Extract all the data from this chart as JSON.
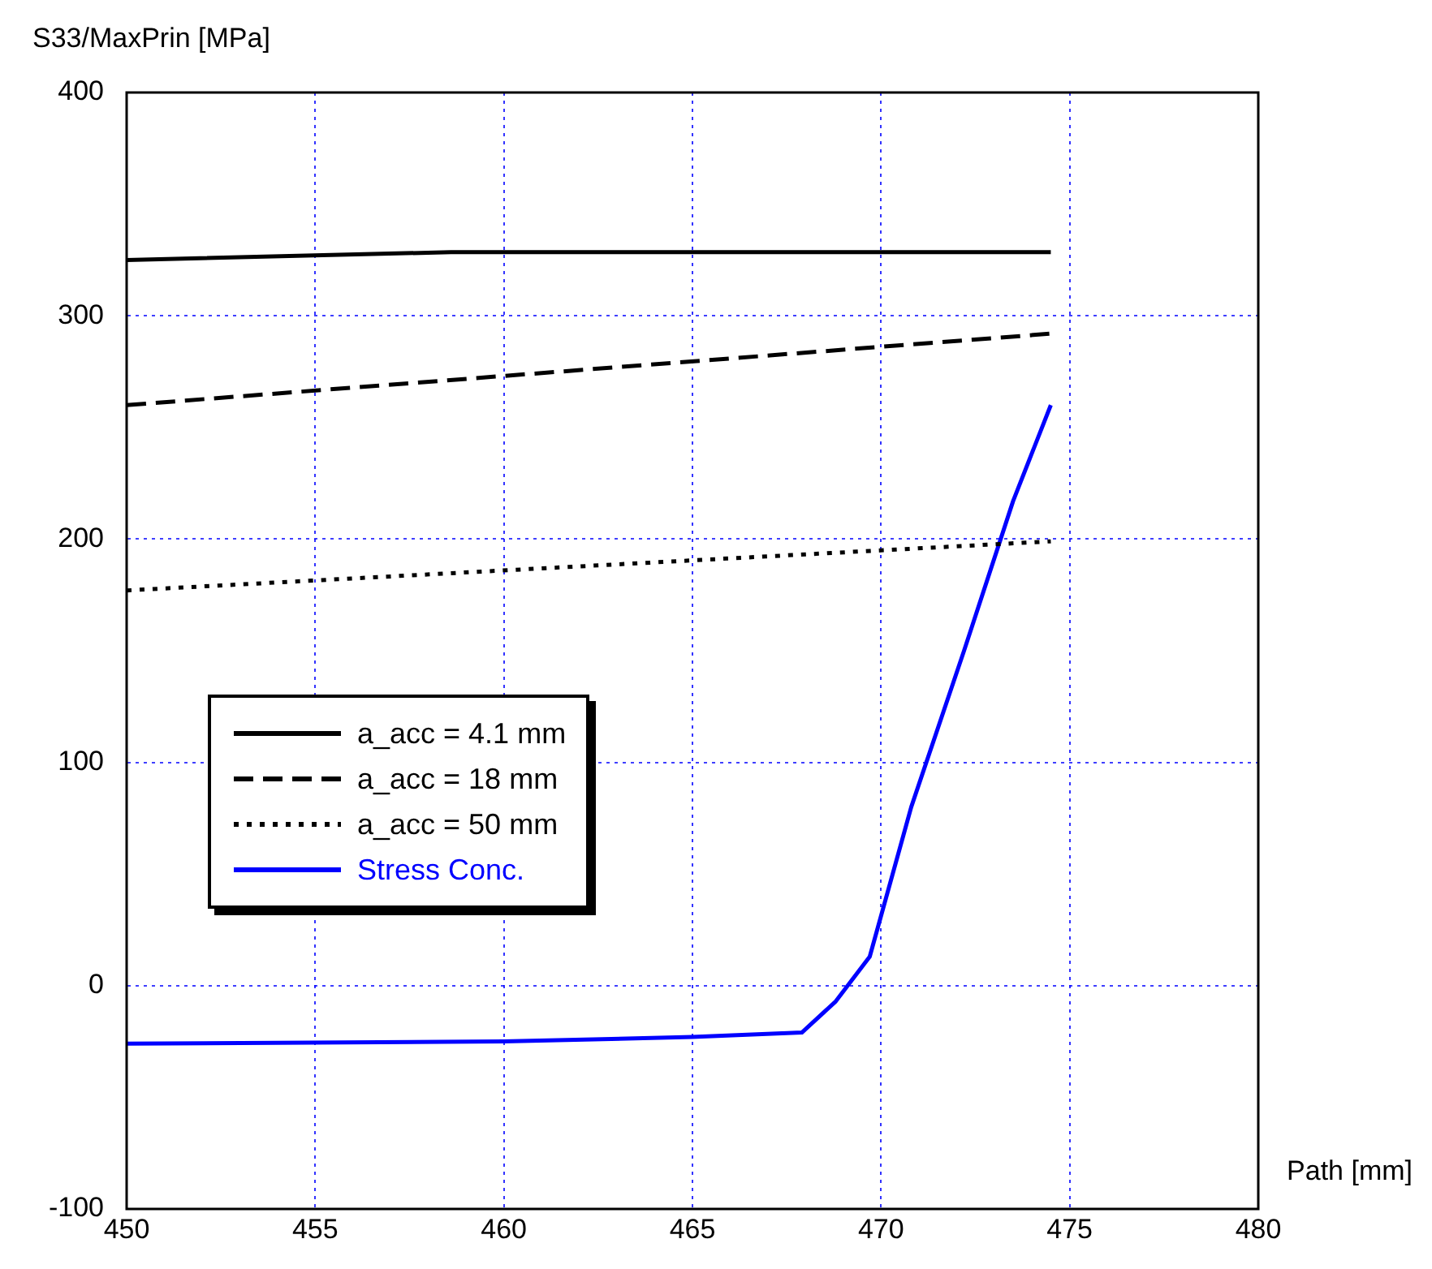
{
  "chart_data": {
    "type": "line",
    "xlabel": "Path [mm]",
    "ylabel": "S33/MaxPrin [MPa]",
    "xlim": [
      450,
      480
    ],
    "xticks": [
      450,
      455,
      460,
      465,
      470,
      475,
      480
    ],
    "ylim": [
      -100,
      400
    ],
    "yticks": [
      -100,
      0,
      100,
      200,
      300,
      400
    ],
    "grid": true,
    "legend": "left",
    "marker": "none",
    "series": [
      {
        "name": "a_acc = 4.1 mm",
        "color": "#000000",
        "line_style": "solid",
        "x": [
          450,
          458.6,
          474.5
        ],
        "values": [
          325,
          328.5,
          328.5
        ]
      },
      {
        "name": "a_acc = 18 mm",
        "color": "#000000",
        "line_style": "dashed",
        "x": [
          450,
          474.5
        ],
        "values": [
          260,
          292
        ]
      },
      {
        "name": "a_acc = 50 mm",
        "color": "#000000",
        "line_style": "dotted",
        "x": [
          450,
          474.5
        ],
        "values": [
          177,
          199
        ]
      },
      {
        "name": "Stress Conc.",
        "color": "#0000ff",
        "line_style": "solid",
        "x": [
          450,
          460,
          465,
          467.9,
          468.8,
          469.7,
          470.8,
          472.2,
          473.5,
          474.5
        ],
        "values": [
          -26,
          -25,
          -23,
          -21,
          -7,
          13,
          80,
          150,
          217,
          260
        ]
      }
    ]
  }
}
